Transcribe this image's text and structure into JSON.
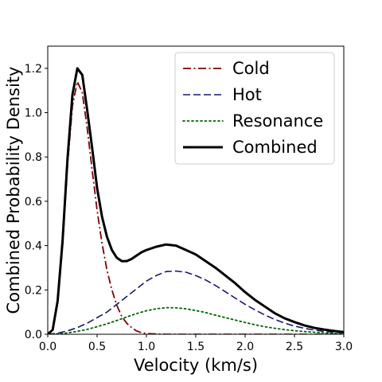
{
  "chart_data": {
    "type": "line",
    "title": "",
    "xlabel": "Velocity (km/s)",
    "ylabel": "Combined Probability Density",
    "xlim": [
      0.0,
      3.0
    ],
    "ylim": [
      0.0,
      1.3
    ],
    "xticks": [
      0.0,
      0.5,
      1.0,
      1.5,
      2.0,
      2.5,
      3.0
    ],
    "xtick_labels": [
      "0.0",
      "0.5",
      "1.0",
      "1.5",
      "2.0",
      "2.5",
      "3.0"
    ],
    "yticks": [
      0.0,
      0.2,
      0.4,
      0.6,
      0.8,
      1.0,
      1.2
    ],
    "ytick_labels": [
      "0.0",
      "0.2",
      "0.4",
      "0.6",
      "0.8",
      "1.0",
      "1.2"
    ],
    "grid": false,
    "legend_position": "top-right",
    "series": [
      {
        "name": "Cold",
        "color": "#800000",
        "style": "dashdot",
        "x": [
          0.0,
          0.05,
          0.1,
          0.15,
          0.2,
          0.25,
          0.3,
          0.35,
          0.4,
          0.45,
          0.5,
          0.55,
          0.6,
          0.65,
          0.7,
          0.75,
          0.8,
          0.85,
          0.9,
          0.95,
          1.0,
          1.1,
          1.2,
          1.4,
          1.6,
          1.8,
          2.0,
          2.2,
          2.4,
          2.6,
          2.8,
          3.0
        ],
        "y": [
          0.0,
          0.02,
          0.14,
          0.4,
          0.76,
          1.03,
          1.14,
          1.09,
          0.93,
          0.74,
          0.56,
          0.41,
          0.29,
          0.2,
          0.13,
          0.08,
          0.05,
          0.03,
          0.015,
          0.007,
          0.003,
          0.001,
          0.0,
          0.0,
          0.0,
          0.0,
          0.0,
          0.0,
          0.0,
          0.0,
          0.0,
          0.0
        ]
      },
      {
        "name": "Hot",
        "color": "#191970",
        "style": "dashed",
        "x": [
          0.0,
          0.1,
          0.2,
          0.3,
          0.4,
          0.5,
          0.6,
          0.7,
          0.8,
          0.9,
          1.0,
          1.1,
          1.2,
          1.3,
          1.4,
          1.5,
          1.6,
          1.7,
          1.8,
          1.9,
          2.0,
          2.1,
          2.2,
          2.3,
          2.4,
          2.5,
          2.6,
          2.7,
          2.8,
          2.9,
          3.0
        ],
        "y": [
          0.0,
          0.005,
          0.015,
          0.03,
          0.05,
          0.075,
          0.1,
          0.135,
          0.17,
          0.205,
          0.24,
          0.265,
          0.283,
          0.285,
          0.28,
          0.265,
          0.245,
          0.22,
          0.192,
          0.163,
          0.135,
          0.11,
          0.087,
          0.067,
          0.05,
          0.037,
          0.027,
          0.019,
          0.013,
          0.009,
          0.006
        ]
      },
      {
        "name": "Resonance",
        "color": "#006400",
        "style": "dotted",
        "x": [
          0.0,
          0.1,
          0.2,
          0.3,
          0.4,
          0.5,
          0.6,
          0.7,
          0.8,
          0.9,
          1.0,
          1.1,
          1.2,
          1.3,
          1.4,
          1.5,
          1.6,
          1.7,
          1.8,
          1.9,
          2.0,
          2.1,
          2.2,
          2.3,
          2.4,
          2.5,
          2.6,
          2.7,
          2.8,
          2.9,
          3.0
        ],
        "y": [
          0.0,
          0.002,
          0.006,
          0.013,
          0.022,
          0.034,
          0.047,
          0.062,
          0.078,
          0.093,
          0.106,
          0.115,
          0.12,
          0.119,
          0.115,
          0.107,
          0.098,
          0.086,
          0.075,
          0.064,
          0.053,
          0.043,
          0.034,
          0.027,
          0.021,
          0.016,
          0.012,
          0.009,
          0.006,
          0.004,
          0.003
        ]
      },
      {
        "name": "Combined",
        "color": "#000000",
        "style": "solid",
        "x": [
          0.0,
          0.05,
          0.1,
          0.15,
          0.2,
          0.25,
          0.3,
          0.35,
          0.4,
          0.45,
          0.5,
          0.55,
          0.6,
          0.65,
          0.7,
          0.75,
          0.8,
          0.85,
          0.9,
          0.95,
          1.0,
          1.1,
          1.2,
          1.3,
          1.4,
          1.5,
          1.6,
          1.7,
          1.8,
          1.9,
          2.0,
          2.1,
          2.2,
          2.3,
          2.4,
          2.5,
          2.6,
          2.7,
          2.8,
          2.9,
          3.0
        ],
        "y": [
          0.0,
          0.02,
          0.15,
          0.42,
          0.79,
          1.08,
          1.2,
          1.17,
          1.01,
          0.84,
          0.66,
          0.53,
          0.44,
          0.38,
          0.345,
          0.33,
          0.33,
          0.34,
          0.355,
          0.37,
          0.38,
          0.395,
          0.405,
          0.4,
          0.38,
          0.36,
          0.33,
          0.3,
          0.265,
          0.23,
          0.19,
          0.155,
          0.125,
          0.095,
          0.072,
          0.055,
          0.04,
          0.029,
          0.021,
          0.015,
          0.01
        ]
      }
    ]
  }
}
